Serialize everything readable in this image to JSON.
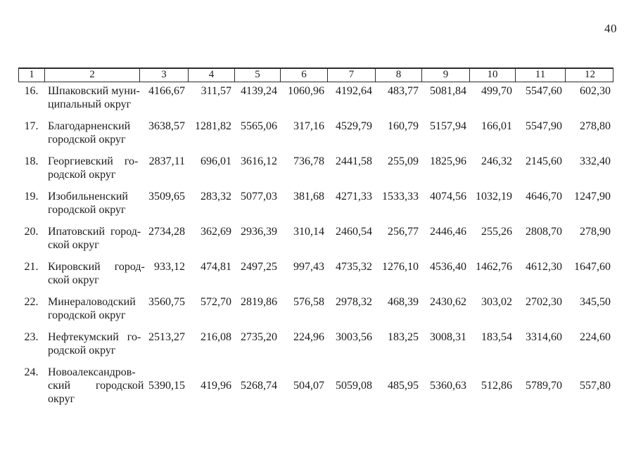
{
  "page": {
    "number": "40"
  },
  "table": {
    "header_labels": [
      "1",
      "2",
      "3",
      "4",
      "5",
      "6",
      "7",
      "8",
      "9",
      "10",
      "11",
      "12"
    ],
    "rows": [
      {
        "num": "16.",
        "name_lines": [
          "Шпаковский муни-",
          "ципальный округ"
        ],
        "values": [
          "4166,67",
          "311,57",
          "4139,24",
          "1060,96",
          "4192,64",
          "483,77",
          "5081,84",
          "499,70",
          "5547,60",
          "602,30"
        ]
      },
      {
        "num": "17.",
        "name_lines": [
          "Благодарненский",
          "городской округ"
        ],
        "values": [
          "3638,57",
          "1281,82",
          "5565,06",
          "317,16",
          "4529,79",
          "160,79",
          "5157,94",
          "166,01",
          "5547,90",
          "278,80"
        ]
      },
      {
        "num": "18.",
        "name_lines": [
          "Георгиевский    го-",
          "родской округ"
        ],
        "values": [
          "2837,11",
          "696,01",
          "3616,12",
          "736,78",
          "2441,58",
          "255,09",
          "1825,96",
          "246,32",
          "2145,60",
          "332,40"
        ]
      },
      {
        "num": "19.",
        "name_lines": [
          "Изобильненский",
          "городской округ"
        ],
        "values": [
          "3509,65",
          "283,32",
          "5077,03",
          "381,68",
          "4271,33",
          "1533,33",
          "4074,56",
          "1032,19",
          "4646,70",
          "1247,90"
        ]
      },
      {
        "num": "20.",
        "name_lines": [
          "Ипатовский  город-",
          "ской округ"
        ],
        "values": [
          "2734,28",
          "362,69",
          "2936,39",
          "310,14",
          "2460,54",
          "256,77",
          "2446,46",
          "255,26",
          "2808,70",
          "278,90"
        ]
      },
      {
        "num": "21.",
        "name_lines": [
          "Кировский     город-",
          "ской округ"
        ],
        "values": [
          "933,12",
          "474,81",
          "2497,25",
          "997,43",
          "4735,32",
          "1276,10",
          "4536,40",
          "1462,76",
          "4612,30",
          "1647,60"
        ]
      },
      {
        "num": "22.",
        "name_lines": [
          "Минераловодский",
          "городской округ"
        ],
        "values": [
          "3560,75",
          "572,70",
          "2819,86",
          "576,58",
          "2978,32",
          "468,39",
          "2430,62",
          "303,02",
          "2702,30",
          "345,50"
        ]
      },
      {
        "num": "23.",
        "name_lines": [
          "Нефтекумский   го-",
          "родской округ"
        ],
        "values": [
          "2513,27",
          "216,08",
          "2735,20",
          "224,96",
          "3003,56",
          "183,25",
          "3008,31",
          "183,54",
          "3314,60",
          "224,60"
        ]
      },
      {
        "num": "24.",
        "name_lines": [
          "Новоалександров-",
          "ский         городской",
          "округ"
        ],
        "values": [
          "5390,15",
          "419,96",
          "5268,74",
          "504,07",
          "5059,08",
          "485,95",
          "5360,63",
          "512,86",
          "5789,70",
          "557,80"
        ]
      }
    ]
  }
}
